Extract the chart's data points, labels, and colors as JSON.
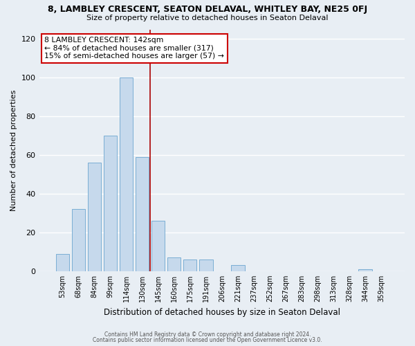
{
  "title": "8, LAMBLEY CRESCENT, SEATON DELAVAL, WHITLEY BAY, NE25 0FJ",
  "subtitle": "Size of property relative to detached houses in Seaton Delaval",
  "xlabel": "Distribution of detached houses by size in Seaton Delaval",
  "ylabel": "Number of detached properties",
  "bar_labels": [
    "53sqm",
    "68sqm",
    "84sqm",
    "99sqm",
    "114sqm",
    "130sqm",
    "145sqm",
    "160sqm",
    "175sqm",
    "191sqm",
    "206sqm",
    "221sqm",
    "237sqm",
    "252sqm",
    "267sqm",
    "283sqm",
    "298sqm",
    "313sqm",
    "328sqm",
    "344sqm",
    "359sqm"
  ],
  "bar_values": [
    9,
    32,
    56,
    70,
    100,
    59,
    26,
    7,
    6,
    6,
    0,
    3,
    0,
    0,
    0,
    0,
    0,
    0,
    0,
    1,
    0
  ],
  "bar_color": "#c6d9ec",
  "bar_edge_color": "#7aaed4",
  "vline_color": "#aa0000",
  "annotation_title": "8 LAMBLEY CRESCENT: 142sqm",
  "annotation_line1": "← 84% of detached houses are smaller (317)",
  "annotation_line2": "15% of semi-detached houses are larger (57) →",
  "annotation_box_edge": "#cc0000",
  "ylim": [
    0,
    125
  ],
  "yticks": [
    0,
    20,
    40,
    60,
    80,
    100,
    120
  ],
  "footer1": "Contains HM Land Registry data © Crown copyright and database right 2024.",
  "footer2": "Contains public sector information licensed under the Open Government Licence v3.0.",
  "background_color": "#e8eef4",
  "grid_color": "#ffffff"
}
